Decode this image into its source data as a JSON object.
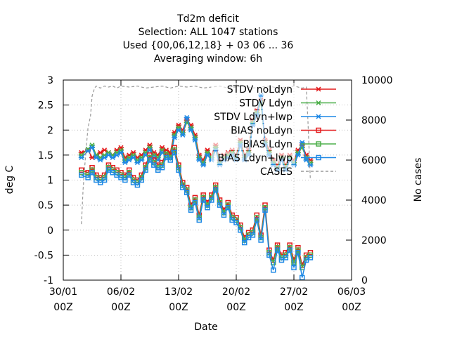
{
  "chart_data": {
    "type": "line",
    "title_lines": [
      "Td2m deficit",
      "Selection: ALL    1047 stations",
      "Used {00,06,12,18} + 03 06 ... 36",
      "Averaging window:  6h"
    ],
    "xlabel": "Date",
    "ylabel": "deg C",
    "y2label": "No cases",
    "x_ticks": [
      {
        "day": 0,
        "label1": "30/01",
        "label2": "00Z"
      },
      {
        "day": 7,
        "label1": "06/02",
        "label2": "00Z"
      },
      {
        "day": 14,
        "label1": "13/02",
        "label2": "00Z"
      },
      {
        "day": 21,
        "label1": "20/02",
        "label2": "00Z"
      },
      {
        "day": 28,
        "label1": "27/02",
        "label2": "00Z"
      },
      {
        "day": 35,
        "label1": "06/03",
        "label2": "00Z"
      }
    ],
    "xlim": [
      0,
      35
    ],
    "ylim": [
      -1,
      3
    ],
    "y_ticks": [
      -1,
      -0.5,
      0,
      0.5,
      1,
      1.5,
      2,
      2.5,
      3
    ],
    "y2lim": [
      0,
      10000
    ],
    "y2_ticks": [
      0,
      2000,
      4000,
      6000,
      8000,
      10000
    ],
    "grid": true,
    "legend_position": "top-right",
    "colors": {
      "red": "#e41a1c",
      "green": "#4daf4a",
      "blue": "#1e88e5",
      "gray": "#999999"
    },
    "series": [
      {
        "name": "STDV noLdyn",
        "color": "#e41a1c",
        "marker": "x",
        "axis": "y",
        "x": [
          2.2,
          3,
          3.5,
          4,
          4.5,
          5,
          5.5,
          6,
          6.5,
          7,
          7.5,
          8,
          8.5,
          9,
          9.5,
          10,
          10.5,
          11,
          11.5,
          12,
          12.5,
          13,
          13.5,
          14,
          14.5,
          15,
          15.5,
          16,
          16.5,
          17,
          17.5,
          18,
          18.5,
          19,
          19.5,
          20,
          20.5,
          21,
          21.5,
          22,
          22.5,
          23,
          23.5,
          24,
          24.5,
          25,
          25.5,
          26,
          26.5,
          27,
          27.5,
          28,
          28.5,
          29,
          29.5,
          30
        ],
        "y": [
          1.55,
          1.6,
          1.45,
          1.5,
          1.55,
          1.6,
          1.55,
          1.5,
          1.6,
          1.65,
          1.45,
          1.5,
          1.55,
          1.45,
          1.5,
          1.6,
          1.7,
          1.55,
          1.5,
          1.65,
          1.6,
          1.55,
          1.95,
          2.1,
          2.0,
          2.2,
          2.1,
          1.9,
          1.5,
          1.4,
          1.6,
          1.5,
          1.7,
          1.4,
          1.5,
          1.55,
          1.6,
          1.5,
          1.8,
          1.5,
          1.6,
          2.2,
          2.4,
          2.6,
          1.8,
          1.6,
          1.4,
          1.3,
          1.5,
          1.3,
          1.5,
          1.4,
          1.6,
          1.7,
          1.5,
          1.4
        ]
      },
      {
        "name": "STDV Ldyn",
        "color": "#4daf4a",
        "marker": "x",
        "axis": "y",
        "x": [
          2.2,
          3,
          3.5,
          4,
          4.5,
          5,
          5.5,
          6,
          6.5,
          7,
          7.5,
          8,
          8.5,
          9,
          9.5,
          10,
          10.5,
          11,
          11.5,
          12,
          12.5,
          13,
          13.5,
          14,
          14.5,
          15,
          15.5,
          16,
          16.5,
          17,
          17.5,
          18,
          18.5,
          19,
          19.5,
          20,
          20.5,
          21,
          21.5,
          22,
          22.5,
          23,
          23.5,
          24,
          24.5,
          25,
          25.5,
          26,
          26.5,
          27,
          27.5,
          28,
          28.5,
          29,
          29.5,
          30
        ],
        "y": [
          1.5,
          1.62,
          1.7,
          1.5,
          1.45,
          1.5,
          1.55,
          1.5,
          1.55,
          1.6,
          1.4,
          1.45,
          1.5,
          1.4,
          1.45,
          1.55,
          1.65,
          1.5,
          1.45,
          1.6,
          1.55,
          1.5,
          1.9,
          2.05,
          1.95,
          2.15,
          2.05,
          1.85,
          1.45,
          1.35,
          1.55,
          1.45,
          1.65,
          1.35,
          1.45,
          1.5,
          1.55,
          1.45,
          1.75,
          1.45,
          1.55,
          2.15,
          2.35,
          2.55,
          1.75,
          1.55,
          1.35,
          1.25,
          1.45,
          1.25,
          1.45,
          1.35,
          1.55,
          1.65,
          1.45,
          1.35
        ]
      },
      {
        "name": "STDV Ldyn+lwp",
        "color": "#1e88e5",
        "marker": "x",
        "axis": "y",
        "x": [
          2.2,
          3,
          3.5,
          4,
          4.5,
          5,
          5.5,
          6,
          6.5,
          7,
          7.5,
          8,
          8.5,
          9,
          9.5,
          10,
          10.5,
          11,
          11.5,
          12,
          12.5,
          13,
          13.5,
          14,
          14.5,
          15,
          15.5,
          16,
          16.5,
          17,
          17.5,
          18,
          18.5,
          19,
          19.5,
          20,
          20.5,
          21,
          21.5,
          22,
          22.5,
          23,
          23.5,
          24,
          24.5,
          25,
          25.5,
          26,
          26.5,
          27,
          27.5,
          28,
          28.5,
          29,
          29.5,
          30
        ],
        "y": [
          1.45,
          1.58,
          1.65,
          1.45,
          1.4,
          1.45,
          1.5,
          1.45,
          1.5,
          1.55,
          1.35,
          1.4,
          1.45,
          1.35,
          1.4,
          1.5,
          1.6,
          1.45,
          1.4,
          1.55,
          1.5,
          1.45,
          1.85,
          2.0,
          1.9,
          2.25,
          2.0,
          1.8,
          1.4,
          1.3,
          1.5,
          1.4,
          1.6,
          1.3,
          1.4,
          1.45,
          1.5,
          1.4,
          1.7,
          1.4,
          1.5,
          2.1,
          2.3,
          2.7,
          1.7,
          1.5,
          1.3,
          1.2,
          1.4,
          1.2,
          1.4,
          1.3,
          1.5,
          1.75,
          1.4,
          1.3
        ]
      },
      {
        "name": "BIAS noLdyn",
        "color": "#e41a1c",
        "marker": "square",
        "axis": "y",
        "x": [
          2.2,
          3,
          3.5,
          4,
          4.5,
          5,
          5.5,
          6,
          6.5,
          7,
          7.5,
          8,
          8.5,
          9,
          9.5,
          10,
          10.5,
          11,
          11.5,
          12,
          12.5,
          13,
          13.5,
          14,
          14.5,
          15,
          15.5,
          16,
          16.5,
          17,
          17.5,
          18,
          18.5,
          19,
          19.5,
          20,
          20.5,
          21,
          21.5,
          22,
          22.5,
          23,
          23.5,
          24,
          24.5,
          25,
          25.5,
          26,
          26.5,
          27,
          27.5,
          28,
          28.5,
          29,
          29.5,
          30
        ],
        "y": [
          1.2,
          1.15,
          1.25,
          1.1,
          1.05,
          1.1,
          1.3,
          1.25,
          1.2,
          1.15,
          1.1,
          1.2,
          1.05,
          1.0,
          1.1,
          1.3,
          1.5,
          1.4,
          1.3,
          1.35,
          1.55,
          1.5,
          1.65,
          1.3,
          0.95,
          0.85,
          0.5,
          0.65,
          0.3,
          0.7,
          0.55,
          0.7,
          0.9,
          0.6,
          0.4,
          0.55,
          0.3,
          0.25,
          0.1,
          -0.15,
          -0.05,
          0.0,
          0.3,
          -0.1,
          0.5,
          -0.4,
          -0.6,
          -0.3,
          -0.5,
          -0.45,
          -0.3,
          -0.6,
          -0.35,
          -0.7,
          -0.5,
          -0.45
        ]
      },
      {
        "name": "BIAS Ldyn",
        "color": "#4daf4a",
        "marker": "square",
        "axis": "y",
        "x": [
          2.2,
          3,
          3.5,
          4,
          4.5,
          5,
          5.5,
          6,
          6.5,
          7,
          7.5,
          8,
          8.5,
          9,
          9.5,
          10,
          10.5,
          11,
          11.5,
          12,
          12.5,
          13,
          13.5,
          14,
          14.5,
          15,
          15.5,
          16,
          16.5,
          17,
          17.5,
          18,
          18.5,
          19,
          19.5,
          20,
          20.5,
          21,
          21.5,
          22,
          22.5,
          23,
          23.5,
          24,
          24.5,
          25,
          25.5,
          26,
          26.5,
          27,
          27.5,
          28,
          28.5,
          29,
          29.5,
          30
        ],
        "y": [
          1.15,
          1.1,
          1.2,
          1.05,
          1.0,
          1.05,
          1.25,
          1.2,
          1.15,
          1.1,
          1.05,
          1.15,
          1.0,
          0.95,
          1.05,
          1.25,
          1.45,
          1.35,
          1.25,
          1.3,
          1.5,
          1.45,
          1.6,
          1.25,
          0.9,
          0.8,
          0.45,
          0.6,
          0.25,
          0.65,
          0.5,
          0.65,
          0.85,
          0.55,
          0.35,
          0.5,
          0.25,
          0.2,
          0.05,
          -0.2,
          -0.1,
          -0.05,
          0.25,
          -0.15,
          0.45,
          -0.45,
          -0.65,
          -0.35,
          -0.55,
          -0.5,
          -0.35,
          -0.65,
          -0.4,
          -0.75,
          -0.55,
          -0.5
        ]
      },
      {
        "name": "BIAS Ldyn+lwp",
        "color": "#1e88e5",
        "marker": "square",
        "axis": "y",
        "x": [
          2.2,
          3,
          3.5,
          4,
          4.5,
          5,
          5.5,
          6,
          6.5,
          7,
          7.5,
          8,
          8.5,
          9,
          9.5,
          10,
          10.5,
          11,
          11.5,
          12,
          12.5,
          13,
          13.5,
          14,
          14.5,
          15,
          15.5,
          16,
          16.5,
          17,
          17.5,
          18,
          18.5,
          19,
          19.5,
          20,
          20.5,
          21,
          21.5,
          22,
          22.5,
          23,
          23.5,
          24,
          24.5,
          25,
          25.5,
          26,
          26.5,
          27,
          27.5,
          28,
          28.5,
          29,
          29.5,
          30
        ],
        "y": [
          1.1,
          1.05,
          1.15,
          1.0,
          0.95,
          1.0,
          1.2,
          1.15,
          1.1,
          1.05,
          1.0,
          1.1,
          0.95,
          0.9,
          1.0,
          1.2,
          1.4,
          1.3,
          1.2,
          1.25,
          1.45,
          1.4,
          1.55,
          1.2,
          0.85,
          0.75,
          0.4,
          0.55,
          0.2,
          0.6,
          0.45,
          0.6,
          0.8,
          0.5,
          0.3,
          0.45,
          0.2,
          0.15,
          0.0,
          -0.25,
          -0.15,
          -0.1,
          0.2,
          -0.2,
          0.4,
          -0.5,
          -0.8,
          -0.4,
          -0.6,
          -0.55,
          -0.4,
          -0.75,
          -0.45,
          -0.95,
          -0.6,
          -0.55
        ]
      },
      {
        "name": "CASES",
        "color": "#999999",
        "marker": "none",
        "dashed": true,
        "axis": "y2",
        "x": [
          2.2,
          2.4,
          2.7,
          3.0,
          3.3,
          3.5,
          3.8,
          4.0,
          4.5,
          5,
          5.5,
          6,
          6.5,
          7,
          8,
          9,
          10,
          11,
          12,
          13,
          14,
          15,
          16,
          17,
          18,
          19,
          20,
          21,
          22,
          23,
          24,
          25,
          26,
          27,
          28,
          29,
          29.5,
          29.7,
          30
        ],
        "y": [
          2800,
          4500,
          6200,
          7600,
          8200,
          9200,
          9600,
          9700,
          9600,
          9700,
          9650,
          9700,
          9600,
          9700,
          9650,
          9700,
          9600,
          9650,
          9700,
          9600,
          9700,
          9650,
          9700,
          9600,
          9650,
          9700,
          9600,
          9650,
          9700,
          9600,
          9650,
          9700,
          9600,
          9650,
          9700,
          9600,
          9650,
          8000,
          5000
        ]
      }
    ]
  }
}
